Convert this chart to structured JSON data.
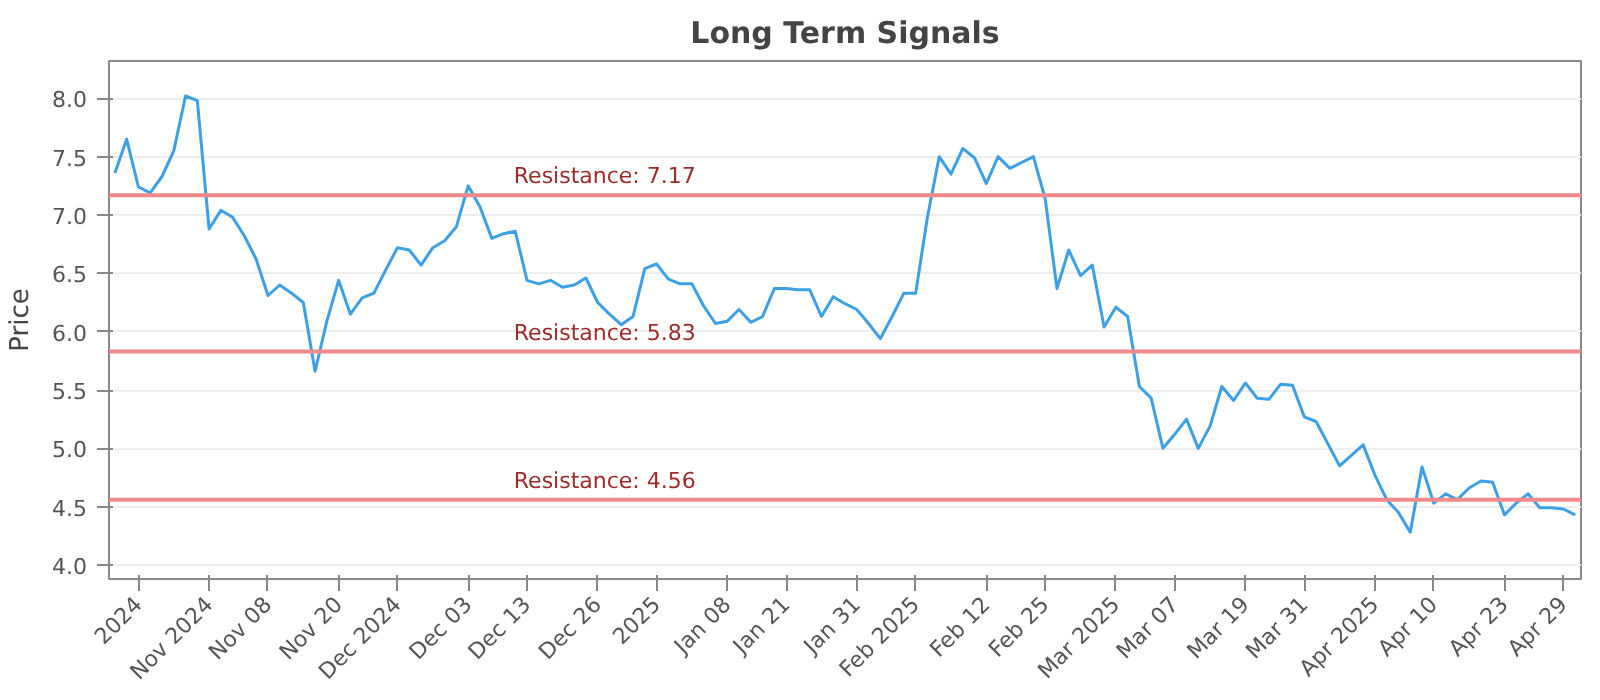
{
  "chart_data": {
    "type": "line",
    "title": "Long Term Signals",
    "ylabel": "Price",
    "categories": [
      null,
      null,
      "2024",
      null,
      null,
      null,
      null,
      null,
      "Nov 2024",
      null,
      null,
      null,
      null,
      "Nov 08",
      null,
      null,
      null,
      null,
      null,
      "Nov 20",
      null,
      null,
      null,
      null,
      "Dec 2024",
      null,
      null,
      null,
      null,
      null,
      "Dec 03",
      null,
      null,
      null,
      null,
      "Dec 13",
      null,
      null,
      null,
      null,
      null,
      "Dec 26",
      null,
      null,
      null,
      null,
      "2025",
      null,
      null,
      null,
      null,
      null,
      "Jan 08",
      null,
      null,
      null,
      null,
      "Jan 21",
      null,
      null,
      null,
      null,
      null,
      "Jan 31",
      null,
      null,
      null,
      null,
      "Feb 2025",
      null,
      null,
      null,
      null,
      null,
      "Feb 12",
      null,
      null,
      null,
      null,
      "Feb 25",
      null,
      null,
      null,
      null,
      null,
      "Mar 2025",
      null,
      null,
      null,
      null,
      "Mar 07",
      null,
      null,
      null,
      null,
      null,
      "Mar 19",
      null,
      null,
      null,
      null,
      "Mar 31",
      null,
      null,
      null,
      null,
      null,
      "Apr 2025",
      null,
      null,
      null,
      null,
      "Apr 10",
      null,
      null,
      null,
      null,
      null,
      "Apr 23",
      null,
      null,
      null,
      null,
      "Apr 29",
      null
    ],
    "series": [
      {
        "color": "#3ea0e4",
        "values": [
          7.36,
          7.65,
          7.24,
          7.19,
          7.33,
          7.55,
          8.02,
          7.98,
          6.88,
          7.04,
          6.98,
          6.82,
          6.62,
          6.31,
          6.4,
          6.33,
          6.25,
          5.66,
          6.09,
          6.44,
          6.15,
          6.29,
          6.33,
          6.53,
          6.72,
          6.7,
          6.57,
          6.72,
          6.78,
          6.9,
          7.25,
          7.07,
          6.8,
          6.84,
          6.86,
          6.44,
          6.41,
          6.44,
          6.38,
          6.4,
          6.46,
          6.25,
          6.15,
          6.06,
          6.13,
          6.54,
          6.58,
          6.45,
          6.41,
          6.41,
          6.22,
          6.07,
          6.09,
          6.19,
          6.08,
          6.13,
          6.37,
          6.37,
          6.36,
          6.36,
          6.13,
          6.3,
          6.24,
          6.19,
          6.07,
          5.94,
          6.13,
          6.33,
          6.33,
          6.98,
          7.5,
          7.35,
          7.57,
          7.49,
          7.27,
          7.5,
          7.4,
          7.45,
          7.5,
          7.14,
          6.37,
          6.7,
          6.48,
          6.57,
          6.04,
          6.21,
          6.13,
          5.53,
          5.43,
          5.0,
          5.12,
          5.25,
          5.0,
          5.19,
          5.53,
          5.41,
          5.56,
          5.43,
          5.42,
          5.55,
          5.54,
          5.27,
          5.23,
          5.04,
          4.85,
          4.94,
          5.03,
          4.77,
          4.56,
          4.45,
          4.28,
          4.84,
          4.53,
          4.61,
          4.56,
          4.66,
          4.72,
          4.71,
          4.43,
          4.53,
          4.61,
          4.49,
          4.49,
          4.48,
          4.43
        ]
      }
    ],
    "ylim": [
      3.88,
      8.32
    ],
    "yticks": [
      {
        "value": 4,
        "label": "4.0"
      },
      {
        "value": 4.5,
        "label": "4.5"
      },
      {
        "value": 5,
        "label": "5.0"
      },
      {
        "value": 5.5,
        "label": "5.5"
      },
      {
        "value": 6,
        "label": "6.0"
      },
      {
        "value": 6.5,
        "label": "6.5"
      },
      {
        "value": 7,
        "label": "7.0"
      },
      {
        "value": 7.5,
        "label": "7.5"
      },
      {
        "value": 8,
        "label": "8.0"
      }
    ],
    "grid": "y",
    "marker": "none",
    "line_style": "solid",
    "ref_lines": [
      {
        "axis": "y",
        "value": 7.17,
        "label": "Resistance: 7.17",
        "color": "#f08a8a"
      },
      {
        "axis": "y",
        "value": 5.83,
        "label": "Resistance: 5.83",
        "color": "#f08a8a"
      },
      {
        "axis": "y",
        "value": 4.56,
        "label": "Resistance: 4.56",
        "color": "#f08a8a"
      }
    ]
  }
}
